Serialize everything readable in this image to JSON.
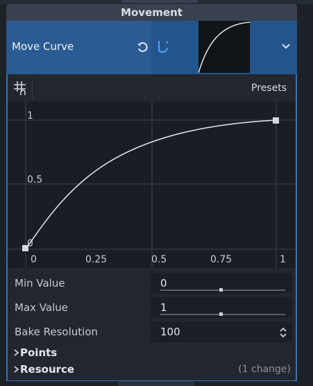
{
  "section_header": "Movement",
  "property": {
    "label": "Move Curve"
  },
  "toolbar": {
    "presets_label": "Presets"
  },
  "graph": {
    "y_ticks": [
      "1",
      "0.5",
      "0"
    ],
    "x_ticks": [
      "0",
      "0.25",
      "0.5",
      "0.75",
      "1"
    ]
  },
  "params": [
    {
      "label": "Min Value",
      "value": "0",
      "slider_fraction": 0.5
    },
    {
      "label": "Max Value",
      "value": "1",
      "slider_fraction": 0.5
    },
    {
      "label": "Bake Resolution",
      "value": "100"
    }
  ],
  "sections": {
    "points_label": "Points",
    "resource_label": "Resource",
    "resource_note": "(1 change)"
  },
  "colors": {
    "accent": "#2a5b92",
    "panel_border": "#3872b4",
    "curve": "#e8eaee"
  },
  "icons": [
    "reset-icon",
    "curve-type-icon",
    "chevron-down-icon",
    "snap-grid-icon",
    "spin-arrows-icon",
    "chevron-right-icon"
  ]
}
